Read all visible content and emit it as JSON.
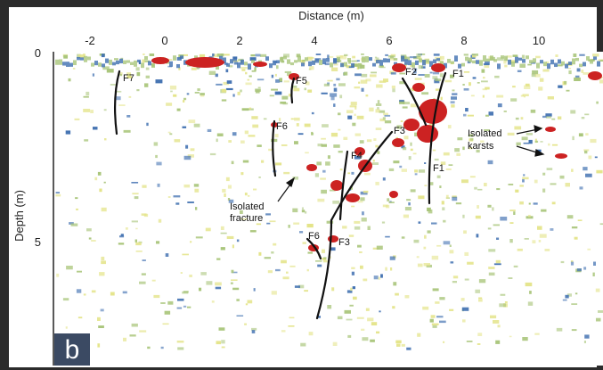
{
  "figure": {
    "panel_label": "b",
    "x_axis": {
      "title": "Distance (m)",
      "ticks": [
        {
          "value": -2,
          "label": "-2"
        },
        {
          "value": 0,
          "label": "0"
        },
        {
          "value": 2,
          "label": "2"
        },
        {
          "value": 4,
          "label": "4"
        },
        {
          "value": 6,
          "label": "6"
        },
        {
          "value": 8,
          "label": "8"
        },
        {
          "value": 10,
          "label": "10"
        }
      ]
    },
    "y_axis": {
      "title": "Depth (m)",
      "ticks": [
        {
          "value": 0,
          "label": "0"
        },
        {
          "value": 5,
          "label": "5"
        }
      ]
    },
    "annotations": {
      "isolated_fracture": [
        "Isolated",
        "fracture"
      ],
      "isolated_karsts": [
        "Isolated",
        "karsts"
      ]
    },
    "fracture_labels": [
      {
        "id": "F7",
        "text": "F7"
      },
      {
        "id": "F5",
        "text": "F5"
      },
      {
        "id": "F6a",
        "text": "F6"
      },
      {
        "id": "F2",
        "text": "F2"
      },
      {
        "id": "F1a",
        "text": "F1"
      },
      {
        "id": "F3a",
        "text": "F3"
      },
      {
        "id": "F4",
        "text": "F4"
      },
      {
        "id": "F1b",
        "text": "F1"
      },
      {
        "id": "F6b",
        "text": "F6"
      },
      {
        "id": "F3b",
        "text": "F3"
      }
    ],
    "colors": {
      "anomaly_strong": "#cc2222",
      "anomaly_medium": "#3f6fb0",
      "anomaly_weak": "#a9c57a",
      "anomaly_faint": "#e4e48a",
      "fracture_line": "#111111",
      "background": "#ffffff"
    }
  }
}
